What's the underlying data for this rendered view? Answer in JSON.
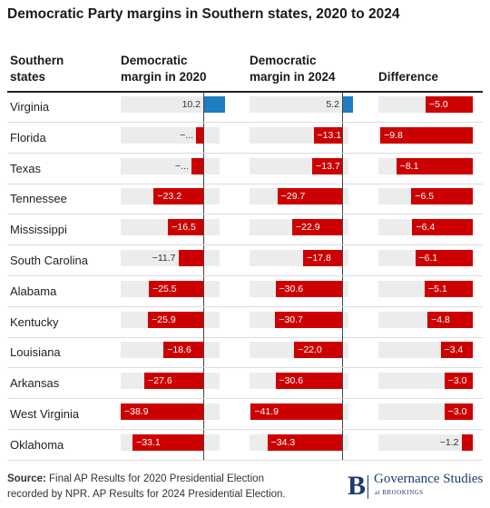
{
  "title": "Democratic Party margins in Southern states, 2020 to 2024",
  "headers": {
    "states": [
      "Southern",
      "states"
    ],
    "margin2020": [
      "Democratic",
      "margin in 2020"
    ],
    "margin2024": [
      "Democratic",
      "margin in 2024"
    ],
    "difference": [
      "Difference"
    ]
  },
  "colors": {
    "negative": "#cc0000",
    "positive": "#1f7dc2",
    "track": "#ececec"
  },
  "chart_data": {
    "type": "bar",
    "title": "Democratic Party margins in Southern states, 2020 to 2024",
    "categories": [
      "Virginia",
      "Florida",
      "Texas",
      "Tennessee",
      "Mississippi",
      "South Carolina",
      "Alabama",
      "Kentucky",
      "Louisiana",
      "Arkansas",
      "West Virginia",
      "Oklahoma"
    ],
    "series": [
      {
        "name": "Democratic margin in 2020",
        "values": [
          10.2,
          -3.4,
          -5.6,
          -23.2,
          -16.5,
          -11.7,
          -25.5,
          -25.9,
          -18.6,
          -27.6,
          -38.9,
          -33.1
        ],
        "labels": [
          "10.2",
          "-...",
          "-...",
          "-23.2",
          "-16.5",
          "-11.7",
          "-25.5",
          "-25.9",
          "-18.6",
          "-27.6",
          "-38.9",
          "-33.1"
        ]
      },
      {
        "name": "Democratic margin in 2024",
        "values": [
          5.2,
          -13.1,
          -13.7,
          -29.7,
          -22.9,
          -17.8,
          -30.6,
          -30.7,
          -22.0,
          -30.6,
          -41.9,
          -34.3
        ],
        "labels": [
          "5.2",
          "-13.1",
          "-13.7",
          "-29.7",
          "-22.9",
          "-17.8",
          "-30.6",
          "-30.7",
          "-22.0",
          "-30.6",
          "-41.9",
          "-34.3"
        ]
      },
      {
        "name": "Difference",
        "values": [
          -5.0,
          -9.8,
          -8.1,
          -6.5,
          -6.4,
          -6.1,
          -5.1,
          -4.8,
          -3.4,
          -3.0,
          -3.0,
          -1.2
        ],
        "labels": [
          "-5.0",
          "-9.8",
          "-8.1",
          "-6.5",
          "-6.4",
          "-6.1",
          "-5.1",
          "-4.8",
          "-3.4",
          "-3.0",
          "-3.0",
          "-1.2"
        ]
      }
    ]
  },
  "footer": {
    "source_label": "Source:",
    "source_text": " Final AP Results for 2020 Presidential Election",
    "source_line2": "recorded by NPR. AP Results for 2024 Presidential Election."
  },
  "logo": {
    "mark": "B",
    "name": "Governance Studies",
    "sub": "at BROOKINGS"
  }
}
